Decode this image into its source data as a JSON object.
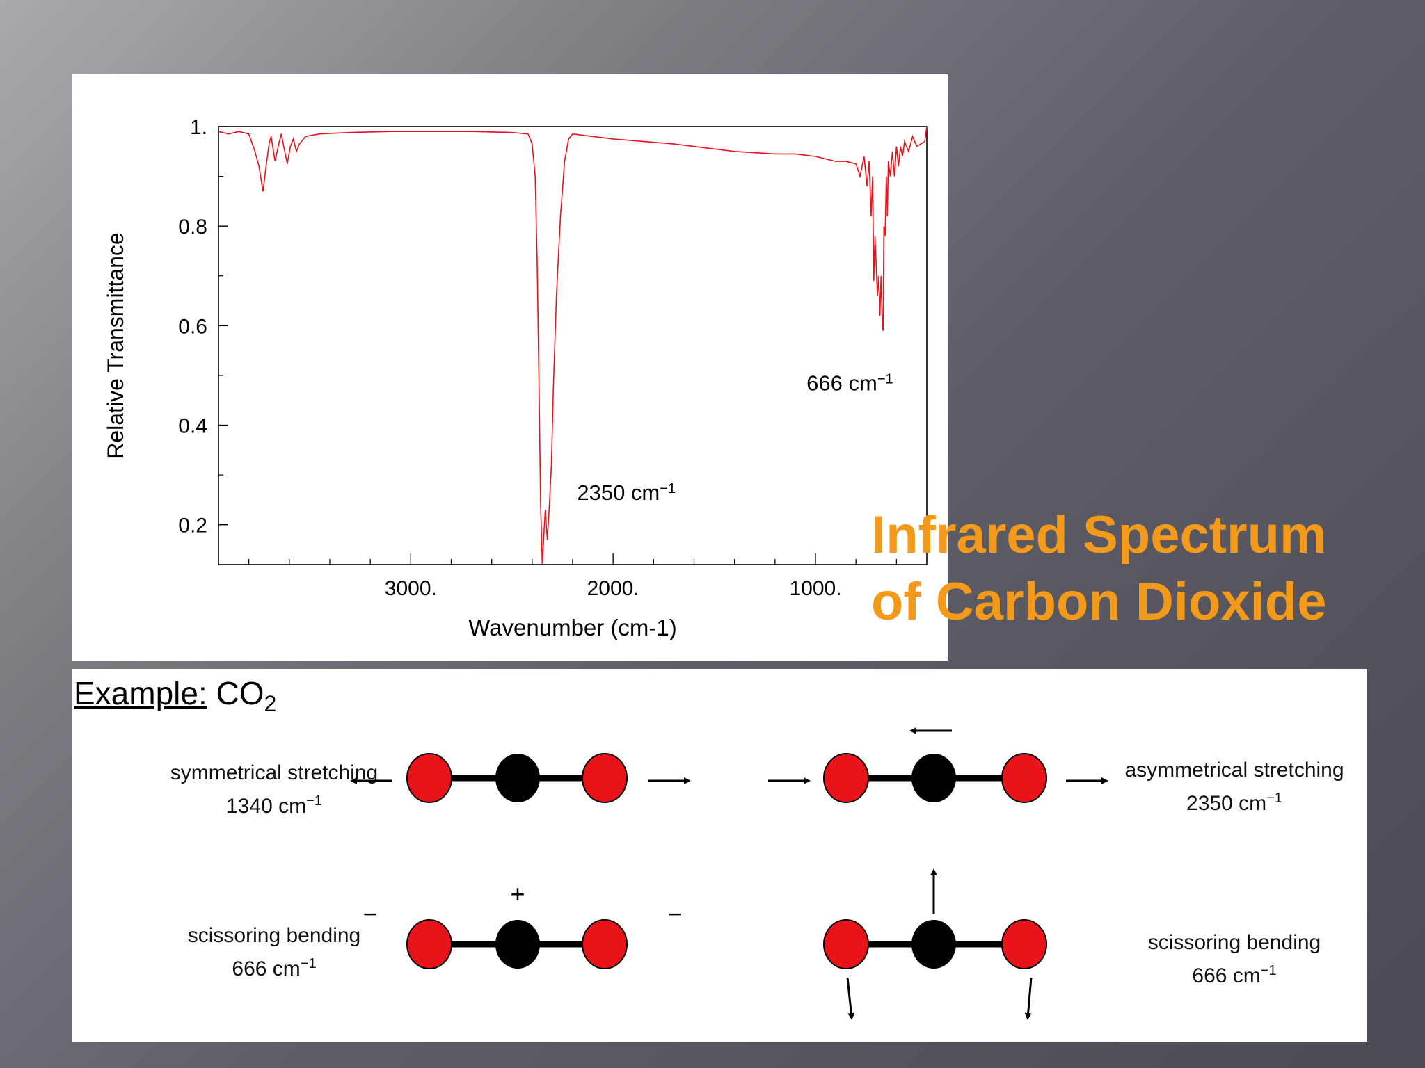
{
  "slide": {
    "title_line1": "Infrared Spectrum",
    "title_line2": "of Carbon Dioxide",
    "title_color": "#f39a1b"
  },
  "chart_data": {
    "type": "line",
    "title": "",
    "xlabel": "Wavenumber (cm-1)",
    "ylabel": "Relative Transmittance",
    "xlim": [
      3950,
      450
    ],
    "x_reversed": true,
    "ylim": [
      0.12,
      1.0
    ],
    "y_ticks": [
      0.2,
      0.4,
      0.6,
      0.8,
      1.0
    ],
    "y_tick_labels": [
      "0.2",
      "0.4",
      "0.6",
      "0.8",
      "1."
    ],
    "x_ticks": [
      3000,
      2000,
      1000
    ],
    "x_tick_labels": [
      "3000.",
      "2000.",
      "1000."
    ],
    "grid": false,
    "series": [
      {
        "color": "#e8141a",
        "x": [
          3950,
          3900,
          3850,
          3800,
          3770,
          3750,
          3730,
          3715,
          3700,
          3690,
          3670,
          3655,
          3640,
          3625,
          3610,
          3595,
          3580,
          3565,
          3550,
          3520,
          3450,
          3300,
          3100,
          2900,
          2700,
          2500,
          2420,
          2400,
          2385,
          2375,
          2365,
          2358,
          2350,
          2342,
          2335,
          2325,
          2315,
          2305,
          2295,
          2280,
          2260,
          2240,
          2220,
          2200,
          2000,
          1700,
          1400,
          1200,
          1100,
          1000,
          900,
          850,
          800,
          780,
          760,
          745,
          735,
          725,
          718,
          712,
          706,
          700,
          694,
          688,
          682,
          676,
          670,
          666,
          662,
          656,
          650,
          645,
          640,
          630,
          620,
          610,
          600,
          590,
          580,
          570,
          560,
          540,
          520,
          500,
          480,
          460,
          450
        ],
        "y": [
          0.99,
          0.985,
          0.99,
          0.985,
          0.95,
          0.92,
          0.87,
          0.92,
          0.965,
          0.98,
          0.93,
          0.96,
          0.985,
          0.955,
          0.925,
          0.96,
          0.975,
          0.95,
          0.965,
          0.98,
          0.985,
          0.988,
          0.99,
          0.99,
          0.99,
          0.988,
          0.985,
          0.965,
          0.9,
          0.72,
          0.45,
          0.24,
          0.12,
          0.18,
          0.23,
          0.17,
          0.24,
          0.32,
          0.48,
          0.66,
          0.82,
          0.93,
          0.975,
          0.985,
          0.975,
          0.965,
          0.95,
          0.945,
          0.945,
          0.94,
          0.93,
          0.93,
          0.925,
          0.9,
          0.94,
          0.88,
          0.93,
          0.82,
          0.9,
          0.69,
          0.78,
          0.72,
          0.66,
          0.7,
          0.62,
          0.7,
          0.6,
          0.59,
          0.8,
          0.78,
          0.9,
          0.82,
          0.93,
          0.9,
          0.95,
          0.9,
          0.96,
          0.92,
          0.96,
          0.94,
          0.97,
          0.95,
          0.98,
          0.96,
          0.965,
          0.97,
          1.0
        ]
      }
    ],
    "annotations": [
      {
        "text": "666 cm",
        "superscript": "−1",
        "x": 666,
        "y": 0.47
      },
      {
        "text": "2350 cm",
        "superscript": "−1",
        "x": 2350,
        "y": 0.25
      }
    ]
  },
  "modes": {
    "heading_prefix": "Example:",
    "heading_formula": "CO",
    "heading_subscript": "2",
    "oxygen_color": "#e8141a",
    "carbon_color": "#000000",
    "sym": {
      "name": "symmetrical stretching",
      "freq": "1340 cm",
      "sup": "−1"
    },
    "asym": {
      "name": "asymmetrical stretching",
      "freq": "2350 cm",
      "sup": "−1"
    },
    "scissor_left": {
      "name": "scissoring bending",
      "freq": "666 cm",
      "sup": "−1",
      "plus": "+",
      "minus": "−"
    },
    "scissor_right": {
      "name": "scissoring bending",
      "freq": "666 cm",
      "sup": "−1"
    }
  }
}
